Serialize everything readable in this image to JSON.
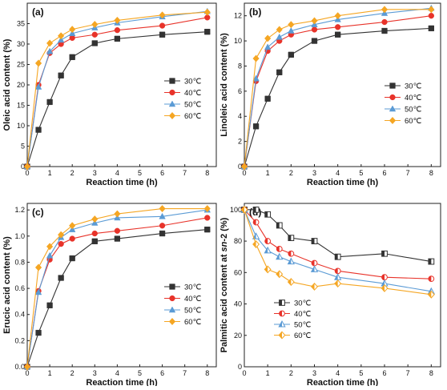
{
  "chart_data": [
    {
      "type": "line",
      "panel_label": "(a)",
      "xlabel": "Reaction time (h)",
      "ylabel": "Oleic acid content (%)",
      "x": [
        0,
        0.5,
        1,
        1.5,
        2,
        3,
        4,
        6,
        8
      ],
      "xlim": [
        0,
        8.4
      ],
      "ylim": [
        0,
        40
      ],
      "xticks": [
        "0",
        "1",
        "2",
        "3",
        "4",
        "5",
        "6",
        "7",
        "8"
      ],
      "yticks": [
        "0",
        "5",
        "10",
        "15",
        "20",
        "25",
        "30",
        "35"
      ],
      "ytick_values": [
        0,
        5,
        10,
        15,
        20,
        25,
        30,
        35
      ],
      "legend_position": "center-right",
      "series": [
        {
          "name": "30℃",
          "color": "#333333",
          "marker": "square",
          "values": [
            0,
            9,
            15.8,
            22.3,
            26.8,
            30.2,
            31.3,
            32.3,
            33.0
          ]
        },
        {
          "name": "40℃",
          "color": "#e8332a",
          "marker": "circle",
          "values": [
            0,
            20.0,
            27.8,
            30.0,
            31.5,
            32.3,
            33.4,
            34.5,
            36.5
          ]
        },
        {
          "name": "50℃",
          "color": "#5b9bd5",
          "marker": "triangle",
          "values": [
            0,
            19.5,
            28.2,
            31.0,
            32.6,
            34.0,
            35.2,
            36.7,
            38.0
          ]
        },
        {
          "name": "60℃",
          "color": "#f5a623",
          "marker": "diamond",
          "values": [
            0,
            25.3,
            30.2,
            32.0,
            33.6,
            34.8,
            35.8,
            37.1,
            37.8
          ]
        }
      ]
    },
    {
      "type": "line",
      "panel_label": "(b)",
      "xlabel": "Reaction time (h)",
      "ylabel": "Linoleic acid content (%)",
      "x": [
        0,
        0.5,
        1,
        1.5,
        2,
        3,
        4,
        6,
        8
      ],
      "xlim": [
        0,
        8.4
      ],
      "ylim": [
        0,
        13
      ],
      "xticks": [
        "0",
        "1",
        "2",
        "3",
        "4",
        "5",
        "6",
        "7",
        "8"
      ],
      "yticks": [
        "0",
        "2",
        "4",
        "6",
        "8",
        "10",
        "12"
      ],
      "ytick_values": [
        0,
        2,
        4,
        6,
        8,
        10,
        12
      ],
      "legend_position": "center-right",
      "series": [
        {
          "name": "30℃",
          "color": "#333333",
          "marker": "square",
          "values": [
            0,
            3.2,
            5.4,
            7.5,
            8.9,
            10.0,
            10.5,
            10.8,
            11.0
          ]
        },
        {
          "name": "40℃",
          "color": "#e8332a",
          "marker": "circle",
          "values": [
            0,
            6.8,
            9.2,
            10.0,
            10.5,
            10.9,
            11.1,
            11.5,
            12.0
          ]
        },
        {
          "name": "50℃",
          "color": "#5b9bd5",
          "marker": "triangle",
          "values": [
            0,
            7.0,
            9.5,
            10.3,
            10.8,
            11.3,
            11.7,
            12.2,
            12.6
          ]
        },
        {
          "name": "60℃",
          "color": "#f5a623",
          "marker": "diamond",
          "values": [
            0,
            8.6,
            10.2,
            10.9,
            11.3,
            11.6,
            12.0,
            12.5,
            12.5
          ]
        }
      ]
    },
    {
      "type": "line",
      "panel_label": "(c)",
      "xlabel": "Reaction time (h)",
      "ylabel": "Erucic acid content (%)",
      "x": [
        0,
        0.5,
        1,
        1.5,
        2,
        3,
        4,
        6,
        8
      ],
      "xlim": [
        0,
        8.4
      ],
      "ylim": [
        0,
        1.25
      ],
      "xticks": [
        "0",
        "1",
        "2",
        "3",
        "4",
        "5",
        "6",
        "7",
        "8"
      ],
      "yticks": [
        "0.0",
        "0.2",
        "0.4",
        "0.6",
        "0.8",
        "1.0",
        "1.2"
      ],
      "ytick_values": [
        0,
        0.2,
        0.4,
        0.6,
        0.8,
        1.0,
        1.2
      ],
      "legend_position": "center-right",
      "series": [
        {
          "name": "30℃",
          "color": "#333333",
          "marker": "square",
          "values": [
            0,
            0.26,
            0.47,
            0.68,
            0.83,
            0.96,
            0.98,
            1.02,
            1.05
          ]
        },
        {
          "name": "40℃",
          "color": "#e8332a",
          "marker": "circle",
          "values": [
            0,
            0.58,
            0.82,
            0.94,
            0.98,
            1.02,
            1.04,
            1.08,
            1.14
          ]
        },
        {
          "name": "50℃",
          "color": "#5b9bd5",
          "marker": "triangle",
          "values": [
            0,
            0.57,
            0.85,
            0.99,
            1.05,
            1.1,
            1.14,
            1.15,
            1.2
          ]
        },
        {
          "name": "60℃",
          "color": "#f5a623",
          "marker": "diamond",
          "values": [
            0,
            0.76,
            0.92,
            1.01,
            1.08,
            1.13,
            1.17,
            1.21,
            1.21
          ]
        }
      ]
    },
    {
      "type": "line",
      "panel_label": "(d)",
      "xlabel": "Reaction time (h)",
      "ylabel_parts": [
        "Palmitic acid content at ",
        "sn",
        "-2 (%)"
      ],
      "x": [
        0,
        0.5,
        1,
        1.5,
        2,
        3,
        4,
        6,
        8
      ],
      "xlim": [
        0,
        8.4
      ],
      "ylim": [
        0,
        104
      ],
      "xticks": [
        "0",
        "1",
        "2",
        "3",
        "4",
        "5",
        "6",
        "7",
        "8"
      ],
      "yticks": [
        "0",
        "20",
        "40",
        "60",
        "80",
        "100"
      ],
      "ytick_values": [
        0,
        20,
        40,
        60,
        80,
        100
      ],
      "legend_position": "bottom-left",
      "series": [
        {
          "name": "30℃",
          "color": "#333333",
          "marker": "half-square",
          "values": [
            100,
            100,
            97,
            90,
            82,
            80,
            70,
            72,
            67
          ]
        },
        {
          "name": "40℃",
          "color": "#e8332a",
          "marker": "half-circle",
          "values": [
            100,
            92,
            80,
            75,
            72,
            66,
            61,
            57,
            56
          ]
        },
        {
          "name": "50℃",
          "color": "#5b9bd5",
          "marker": "half-triangle",
          "values": [
            100,
            83,
            74,
            70,
            67,
            62,
            57,
            53,
            48
          ]
        },
        {
          "name": "60℃",
          "color": "#f5a623",
          "marker": "half-diamond",
          "values": [
            100,
            78,
            62,
            59,
            54,
            51,
            53,
            50,
            46
          ]
        }
      ]
    }
  ]
}
